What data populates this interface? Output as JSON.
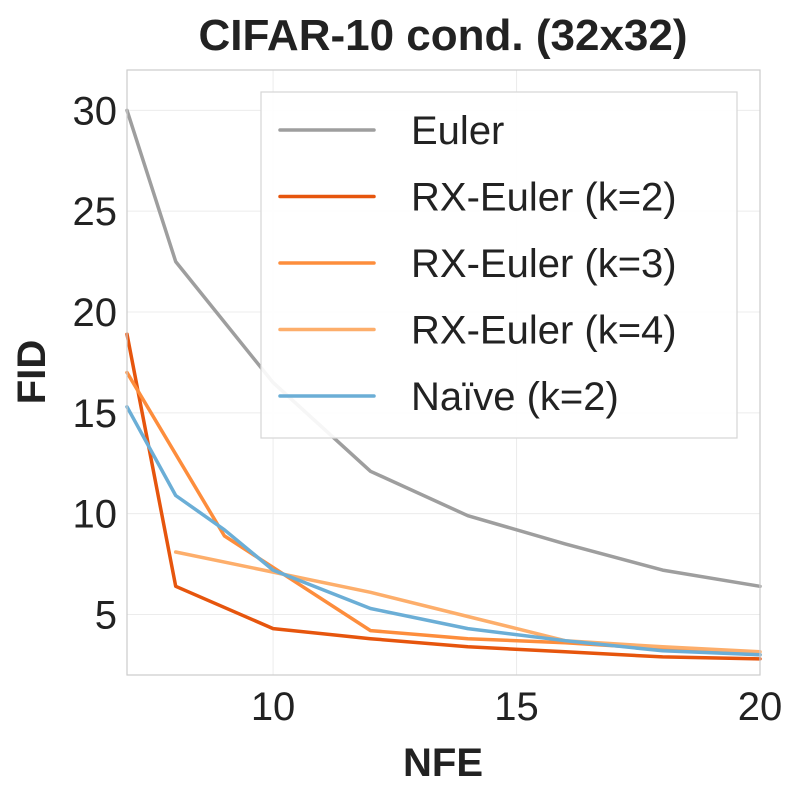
{
  "chart_data": {
    "type": "line",
    "title": "CIFAR-10 cond. (32x32)",
    "xlabel": "NFE",
    "ylabel": "FID",
    "xlim": [
      7,
      20
    ],
    "ylim": [
      2,
      32
    ],
    "xticks": [
      10,
      15,
      20
    ],
    "yticks": [
      5,
      10,
      15,
      20,
      25,
      30
    ],
    "grid": true,
    "legend_position": "top-right",
    "series": [
      {
        "name": "Euler",
        "color": "#9e9e9e",
        "x": [
          7,
          8,
          10,
          12,
          14,
          16,
          18,
          20
        ],
        "y": [
          30.0,
          22.5,
          16.5,
          12.1,
          9.9,
          8.5,
          7.2,
          6.4
        ]
      },
      {
        "name": "RX-Euler (k=2)",
        "color": "#e6550d",
        "x": [
          7,
          8,
          10,
          12,
          14,
          16,
          18,
          20
        ],
        "y": [
          18.9,
          6.4,
          4.3,
          3.8,
          3.4,
          3.15,
          2.9,
          2.8
        ]
      },
      {
        "name": "RX-Euler (k=3)",
        "color": "#fd8d3c",
        "x": [
          7,
          9,
          12,
          14,
          16,
          18,
          20
        ],
        "y": [
          17.0,
          8.9,
          4.2,
          3.8,
          3.6,
          3.3,
          3.0
        ]
      },
      {
        "name": "RX-Euler (k=4)",
        "color": "#fdae6b",
        "x": [
          8,
          10,
          12,
          14,
          16,
          18,
          20
        ],
        "y": [
          8.1,
          7.1,
          6.1,
          4.9,
          3.7,
          3.4,
          3.15
        ]
      },
      {
        "name": "Naïve (k=2)",
        "color": "#6baed6",
        "x": [
          7,
          8,
          9,
          10,
          12,
          14,
          16,
          18,
          20
        ],
        "y": [
          15.3,
          10.9,
          9.2,
          7.2,
          5.3,
          4.3,
          3.7,
          3.2,
          3.0
        ]
      }
    ]
  }
}
